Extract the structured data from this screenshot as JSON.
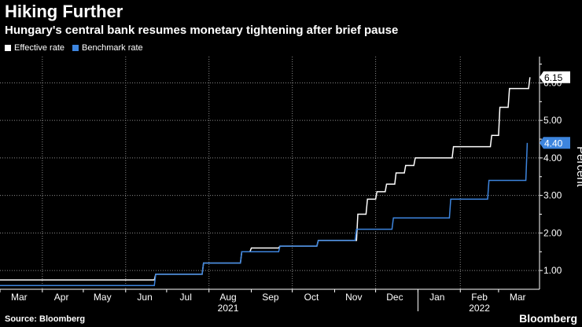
{
  "header": {
    "title": "Hiking Further",
    "subtitle": "Hungary's central bank resumes monetary tightening after brief pause"
  },
  "footer": {
    "source": "Source: Bloomberg",
    "brand": "Bloomberg"
  },
  "colors": {
    "background": "#000000",
    "effective": "#ffffff",
    "benchmark": "#3d85de",
    "grid": "#8a8a8a",
    "axis": "#ffffff"
  },
  "chart_data": {
    "type": "line",
    "title": "Hiking Further",
    "subtitle": "Hungary's central bank resumes monetary tightening after brief pause",
    "xlabel": "",
    "ylabel": "Percent",
    "x_range": [
      "2021-03-01",
      "2022-03-31"
    ],
    "ylim": [
      0.5,
      6.7
    ],
    "y_ticks": [
      1.0,
      2.0,
      3.0,
      4.0,
      5.0,
      6.0
    ],
    "y_tick_labels": [
      "1.00",
      "2.00",
      "3.00",
      "4.00",
      "5.00",
      "6.00"
    ],
    "grid": true,
    "legend_position": "top-left",
    "x_ticks": [
      {
        "date": "2021-03-15",
        "label": "Mar"
      },
      {
        "date": "2021-04-15",
        "label": "Apr"
      },
      {
        "date": "2021-05-15",
        "label": "May"
      },
      {
        "date": "2021-06-15",
        "label": "Jun"
      },
      {
        "date": "2021-07-15",
        "label": "Jul"
      },
      {
        "date": "2021-08-15",
        "label": "Aug"
      },
      {
        "date": "2021-09-15",
        "label": "Sep"
      },
      {
        "date": "2021-10-15",
        "label": "Oct"
      },
      {
        "date": "2021-11-15",
        "label": "Nov"
      },
      {
        "date": "2021-12-15",
        "label": "Dec"
      },
      {
        "date": "2022-01-15",
        "label": "Jan"
      },
      {
        "date": "2022-02-15",
        "label": "Feb"
      },
      {
        "date": "2022-03-15",
        "label": "Mar"
      }
    ],
    "year_labels": [
      {
        "date": "2021-08-15",
        "label": "2021"
      },
      {
        "date": "2022-02-15",
        "label": "2022"
      }
    ],
    "year_divider": "2022-01-01",
    "gridline_dates": [
      "2021-04-01",
      "2021-06-01",
      "2021-08-01",
      "2021-10-01",
      "2021-12-01",
      "2022-02-01"
    ],
    "series": [
      {
        "name": "Effective rate",
        "key": "effective",
        "step": true,
        "last_label": "6.15",
        "points": [
          [
            "2021-03-01",
            0.75
          ],
          [
            "2021-06-22",
            0.75
          ],
          [
            "2021-06-23",
            0.9
          ],
          [
            "2021-07-27",
            0.9
          ],
          [
            "2021-07-28",
            1.2
          ],
          [
            "2021-08-24",
            1.2
          ],
          [
            "2021-08-25",
            1.5
          ],
          [
            "2021-08-31",
            1.5
          ],
          [
            "2021-09-01",
            1.6
          ],
          [
            "2021-09-21",
            1.6
          ],
          [
            "2021-09-22",
            1.65
          ],
          [
            "2021-10-19",
            1.65
          ],
          [
            "2021-10-20",
            1.8
          ],
          [
            "2021-11-17",
            1.8
          ],
          [
            "2021-11-18",
            2.5
          ],
          [
            "2021-11-24",
            2.5
          ],
          [
            "2021-11-25",
            2.9
          ],
          [
            "2021-12-01",
            2.9
          ],
          [
            "2021-12-02",
            3.1
          ],
          [
            "2021-12-08",
            3.1
          ],
          [
            "2021-12-09",
            3.3
          ],
          [
            "2021-12-15",
            3.3
          ],
          [
            "2021-12-16",
            3.6
          ],
          [
            "2021-12-22",
            3.6
          ],
          [
            "2021-12-23",
            3.8
          ],
          [
            "2021-12-29",
            3.8
          ],
          [
            "2021-12-30",
            4.0
          ],
          [
            "2022-01-26",
            4.0
          ],
          [
            "2022-01-27",
            4.3
          ],
          [
            "2022-02-23",
            4.3
          ],
          [
            "2022-02-24",
            4.6
          ],
          [
            "2022-03-01",
            4.6
          ],
          [
            "2022-03-02",
            5.35
          ],
          [
            "2022-03-08",
            5.35
          ],
          [
            "2022-03-09",
            5.85
          ],
          [
            "2022-03-23",
            5.85
          ],
          [
            "2022-03-24",
            6.15
          ]
        ]
      },
      {
        "name": "Benchmark rate",
        "key": "benchmark",
        "step": true,
        "last_label": "4.40",
        "points": [
          [
            "2021-03-01",
            0.6
          ],
          [
            "2021-06-22",
            0.6
          ],
          [
            "2021-06-23",
            0.9
          ],
          [
            "2021-07-27",
            0.9
          ],
          [
            "2021-07-28",
            1.2
          ],
          [
            "2021-08-24",
            1.2
          ],
          [
            "2021-08-25",
            1.5
          ],
          [
            "2021-09-21",
            1.5
          ],
          [
            "2021-09-22",
            1.65
          ],
          [
            "2021-10-19",
            1.65
          ],
          [
            "2021-10-20",
            1.8
          ],
          [
            "2021-11-16",
            1.8
          ],
          [
            "2021-11-17",
            2.1
          ],
          [
            "2021-12-13",
            2.1
          ],
          [
            "2021-12-14",
            2.4
          ],
          [
            "2022-01-24",
            2.4
          ],
          [
            "2022-01-25",
            2.9
          ],
          [
            "2022-02-21",
            2.9
          ],
          [
            "2022-02-22",
            3.4
          ],
          [
            "2022-03-21",
            3.4
          ],
          [
            "2022-03-22",
            4.4
          ]
        ]
      }
    ]
  }
}
